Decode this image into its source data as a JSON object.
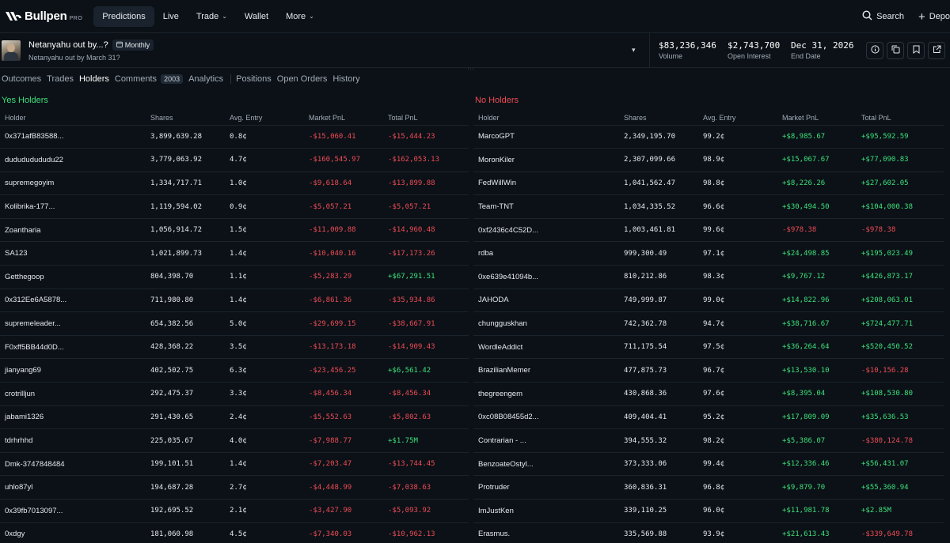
{
  "nav": {
    "logo": "Bullpen",
    "logo_badge": "PRO",
    "items": [
      {
        "label": "Predictions",
        "active": true,
        "dropdown": false
      },
      {
        "label": "Live",
        "active": false,
        "dropdown": false
      },
      {
        "label": "Trade",
        "active": false,
        "dropdown": true
      },
      {
        "label": "Wallet",
        "active": false,
        "dropdown": false
      },
      {
        "label": "More",
        "active": false,
        "dropdown": true
      }
    ],
    "search_label": "Search",
    "deposit_label": "Depo"
  },
  "market": {
    "title": "Netanyahu out by...?",
    "badge": "Monthly",
    "subtitle": "Netanyahu out by March 31?",
    "volume": {
      "value": "$83,236,346",
      "label": "Volume"
    },
    "open_interest": {
      "value": "$2,743,700",
      "label": "Open Interest"
    },
    "end_date": {
      "value": "Dec 31, 2026",
      "label": "End Date"
    }
  },
  "tabs": [
    {
      "label": "Outcomes",
      "active": false
    },
    {
      "label": "Trades",
      "active": false
    },
    {
      "label": "Holders",
      "active": true
    },
    {
      "label": "Comments",
      "active": false,
      "count": "2003"
    },
    {
      "label": "Analytics",
      "active": false
    },
    {
      "label": "Positions",
      "active": false
    },
    {
      "label": "Open Orders",
      "active": false
    },
    {
      "label": "History",
      "active": false
    }
  ],
  "columns": [
    "Holder",
    "Shares",
    "Avg. Entry",
    "Market PnL",
    "Total PnL"
  ],
  "yes_holders": {
    "title": "Yes Holders",
    "rows": [
      [
        "0x371afB83588...",
        "3,899,639.28",
        "0.8¢",
        "-$15,060.41",
        "-$15,444.23"
      ],
      [
        "dudududududu22",
        "3,779,063.92",
        "4.7¢",
        "-$160,545.97",
        "-$162,053.13"
      ],
      [
        "supremegoyim",
        "1,334,717.71",
        "1.0¢",
        "-$9,618.64",
        "-$13,899.88"
      ],
      [
        "Kolibrika-177...",
        "1,119,594.02",
        "0.9¢",
        "-$5,057.21",
        "-$5,057.21"
      ],
      [
        "Zoantharia",
        "1,056,914.72",
        "1.5¢",
        "-$11,009.88",
        "-$14,960.48"
      ],
      [
        "SA123",
        "1,021,899.73",
        "1.4¢",
        "-$10,040.16",
        "-$17,173.26"
      ],
      [
        "Getthegoop",
        "804,398.70",
        "1.1¢",
        "-$5,283.29",
        "+$67,291.51"
      ],
      [
        "0x312Ee6A5878...",
        "711,980.80",
        "1.4¢",
        "-$6,861.36",
        "-$35,934.86"
      ],
      [
        "supremeleader...",
        "654,382.56",
        "5.0¢",
        "-$29,699.15",
        "-$38,667.91"
      ],
      [
        "F0xff5BB44d0D...",
        "428,368.22",
        "3.5¢",
        "-$13,173.18",
        "-$14,909.43"
      ],
      [
        "jianyang69",
        "402,502.75",
        "6.3¢",
        "-$23,456.25",
        "+$6,561.42"
      ],
      [
        "crotrilljun",
        "292,475.37",
        "3.3¢",
        "-$8,456.34",
        "-$8,456.34"
      ],
      [
        "jabami1326",
        "291,430.65",
        "2.4¢",
        "-$5,552.63",
        "-$5,802.63"
      ],
      [
        "tdrhrhhd",
        "225,035.67",
        "4.0¢",
        "-$7,988.77",
        "+$1.75M"
      ],
      [
        "Dmk-3747848484",
        "199,101.51",
        "1.4¢",
        "-$7,203.47",
        "-$13,744.45"
      ],
      [
        "uhlo87yl",
        "194,687.28",
        "2.7¢",
        "-$4,448.99",
        "-$7,038.63"
      ],
      [
        "0x39fb7013097...",
        "192,695.52",
        "2.1¢",
        "-$3,427.90",
        "-$5,093.92"
      ],
      [
        "0xdgy",
        "181,060.98",
        "4.5¢",
        "-$7,340.03",
        "-$10,962.13"
      ]
    ]
  },
  "no_holders": {
    "title": "No Holders",
    "rows": [
      [
        "MarcoGPT",
        "2,349,195.70",
        "99.2¢",
        "+$8,985.67",
        "+$95,592.59"
      ],
      [
        "MoronKiler",
        "2,307,099.66",
        "98.9¢",
        "+$15,067.67",
        "+$77,090.83"
      ],
      [
        "FedWillWin",
        "1,041,562.47",
        "98.8¢",
        "+$8,226.26",
        "+$27,602.05"
      ],
      [
        "Team-TNT",
        "1,034,335.52",
        "96.6¢",
        "+$30,494.50",
        "+$104,000.38"
      ],
      [
        "0xf2436c4C52D...",
        "1,003,461.81",
        "99.6¢",
        "-$978.38",
        "-$978.38"
      ],
      [
        "rdba",
        "999,300.49",
        "97.1¢",
        "+$24,498.85",
        "+$195,023.49"
      ],
      [
        "0xe639e41094b...",
        "810,212.86",
        "98.3¢",
        "+$9,767.12",
        "+$426,873.17"
      ],
      [
        "JAHODA",
        "749,999.87",
        "99.0¢",
        "+$14,822.96",
        "+$208,063.01"
      ],
      [
        "chungguskhan",
        "742,362.78",
        "94.7¢",
        "+$38,716.67",
        "+$724,477.71"
      ],
      [
        "WordleAddict",
        "711,175.54",
        "97.5¢",
        "+$36,264.64",
        "+$520,450.52"
      ],
      [
        "BrazilianMemer",
        "477,875.73",
        "96.7¢",
        "+$13,530.10",
        "-$10,156.28"
      ],
      [
        "thegreengem",
        "430,868.36",
        "97.6¢",
        "+$8,395.04",
        "+$108,530.80"
      ],
      [
        "0xc08B08455d2...",
        "409,404.41",
        "95.2¢",
        "+$17,809.09",
        "+$35,636.53"
      ],
      [
        "Contrarian - ...",
        "394,555.32",
        "98.2¢",
        "+$5,386.07",
        "-$380,124.78"
      ],
      [
        "BenzoateOstyl...",
        "373,333.06",
        "99.4¢",
        "+$12,336.46",
        "+$56,431.07"
      ],
      [
        "Protruder",
        "360,836.31",
        "96.8¢",
        "+$9,879.70",
        "+$55,360.94"
      ],
      [
        "ImJustKen",
        "339,110.25",
        "96.0¢",
        "+$11,981.78",
        "+$2.85M"
      ],
      [
        "Erasmus.",
        "335,569.88",
        "93.9¢",
        "+$21,613.43",
        "-$339,649.78"
      ]
    ]
  },
  "colors": {
    "positive": "#3ee07a",
    "negative": "#ef4b55",
    "background": "#0b1117"
  }
}
